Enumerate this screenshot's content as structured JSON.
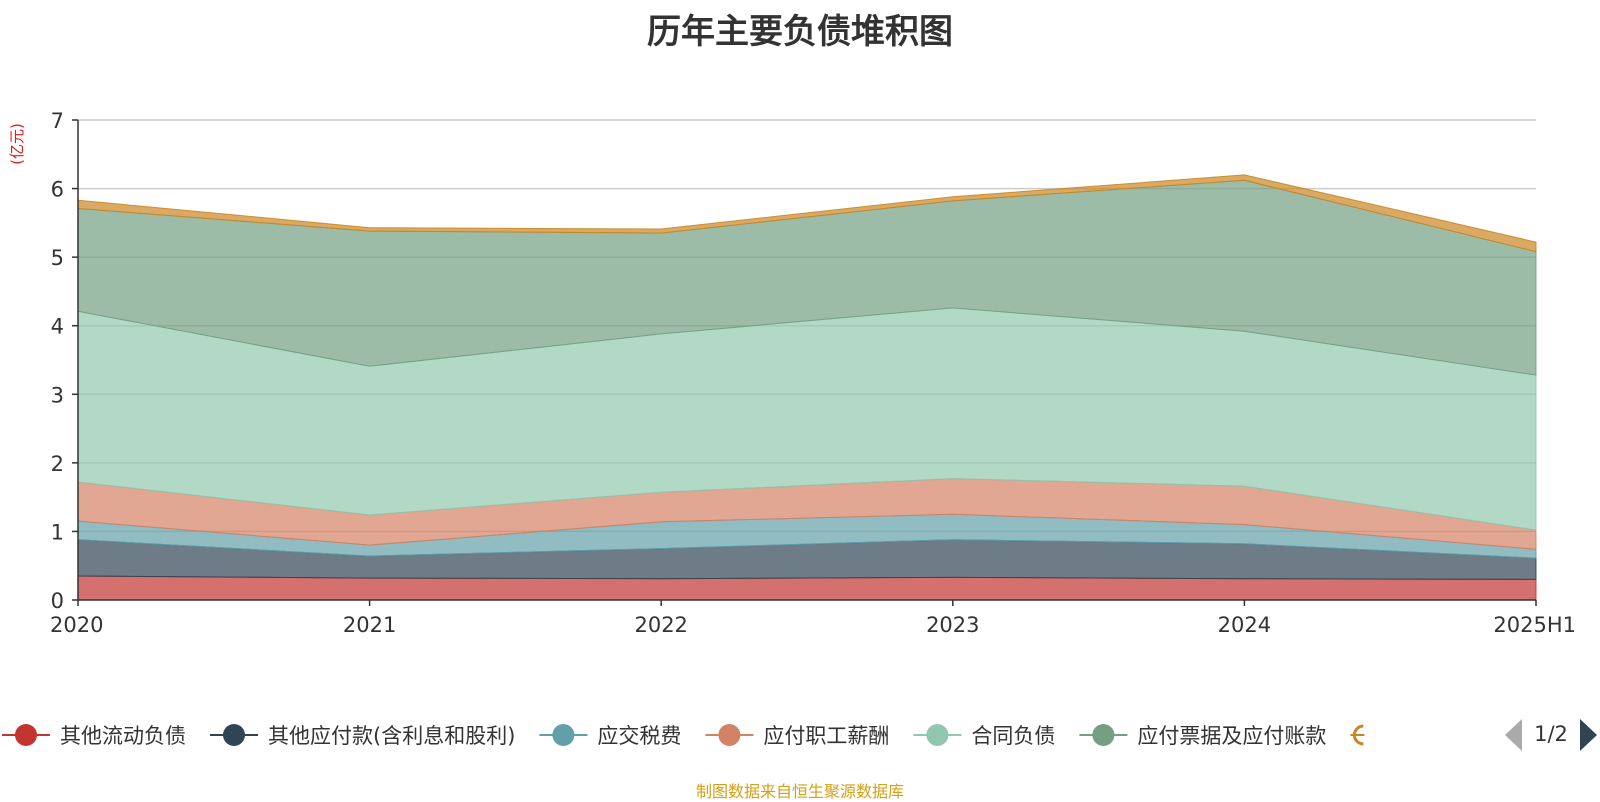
{
  "chart_data": {
    "type": "area",
    "stacked": true,
    "title": "历年主要负债堆积图",
    "unit_label": "(亿元)",
    "categories": [
      "2020",
      "2021",
      "2022",
      "2023",
      "2024",
      "2025H1"
    ],
    "ylim": [
      0,
      7
    ],
    "yticks": [
      "0",
      "1",
      "2",
      "3",
      "4",
      "5",
      "6",
      "7"
    ],
    "grid": true,
    "legend_position": "bottom",
    "legend_page": "1/2",
    "series": [
      {
        "name": "其他流动负债",
        "color": "#c23531",
        "values": [
          0.35,
          0.32,
          0.31,
          0.33,
          0.31,
          0.3
        ]
      },
      {
        "name": "其他应付款(含利息和股利)",
        "color": "#2f4554",
        "values": [
          0.53,
          0.32,
          0.44,
          0.55,
          0.51,
          0.31
        ]
      },
      {
        "name": "应交税费",
        "color": "#61a0a8",
        "values": [
          0.27,
          0.16,
          0.39,
          0.37,
          0.28,
          0.13
        ]
      },
      {
        "name": "应付职工薪酬",
        "color": "#d48265",
        "values": [
          0.57,
          0.44,
          0.43,
          0.52,
          0.56,
          0.28
        ]
      },
      {
        "name": "合同负债",
        "color": "#91c7ae",
        "values": [
          2.49,
          2.17,
          2.31,
          2.49,
          2.26,
          2.26
        ]
      },
      {
        "name": "应付票据及应付账款",
        "color": "#749f83",
        "values": [
          1.5,
          1.97,
          1.47,
          1.56,
          2.2,
          1.8
        ]
      },
      {
        "name": "",
        "color": "#ca8622",
        "values": [
          0.12,
          0.05,
          0.06,
          0.06,
          0.08,
          0.14
        ]
      }
    ]
  },
  "source_note": "制图数据来自恒生聚源数据库"
}
